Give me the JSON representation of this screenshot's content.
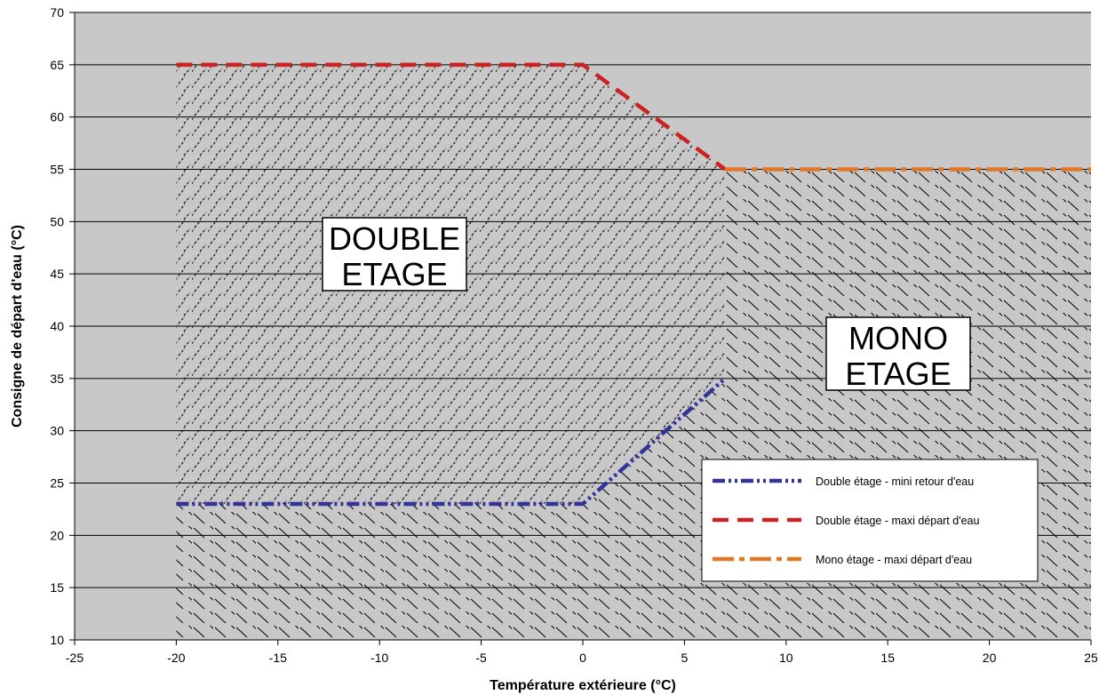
{
  "chart_data": {
    "type": "line",
    "title": "",
    "xlabel": "Température extérieure (°C)",
    "ylabel": "Consigne de départ d'eau (°C)",
    "xlim": [
      -25,
      25
    ],
    "ylim": [
      10,
      70
    ],
    "x_ticks": [
      "-25",
      "-20",
      "-15",
      "-10",
      "-5",
      "0",
      "5",
      "10",
      "15",
      "20",
      "25"
    ],
    "y_ticks": [
      "10",
      "15",
      "20",
      "25",
      "30",
      "35",
      "40",
      "45",
      "50",
      "55",
      "60",
      "65",
      "70"
    ],
    "grid": "horizontal",
    "legend_position": "bottom-right",
    "plot_background": "#C8C8C8",
    "series": [
      {
        "name": "Double étage - mini retour d'eau",
        "color": "#333399",
        "style": "dash-dot-dot",
        "points": [
          [
            -20,
            23
          ],
          [
            0,
            23
          ],
          [
            7,
            35
          ]
        ]
      },
      {
        "name": "Double étage - maxi départ d'eau",
        "color": "#CC2222",
        "style": "dashed",
        "points": [
          [
            -20,
            65
          ],
          [
            0,
            65
          ],
          [
            7,
            55
          ]
        ]
      },
      {
        "name": "Mono étage - maxi départ d'eau",
        "color": "#E07828",
        "style": "long-dash-dot",
        "points": [
          [
            7,
            55
          ],
          [
            25,
            55
          ]
        ]
      }
    ],
    "annotations": [
      {
        "line1": "DOUBLE",
        "line2": "ETAGE"
      },
      {
        "line1": "MONO",
        "line2": "ETAGE"
      }
    ]
  }
}
